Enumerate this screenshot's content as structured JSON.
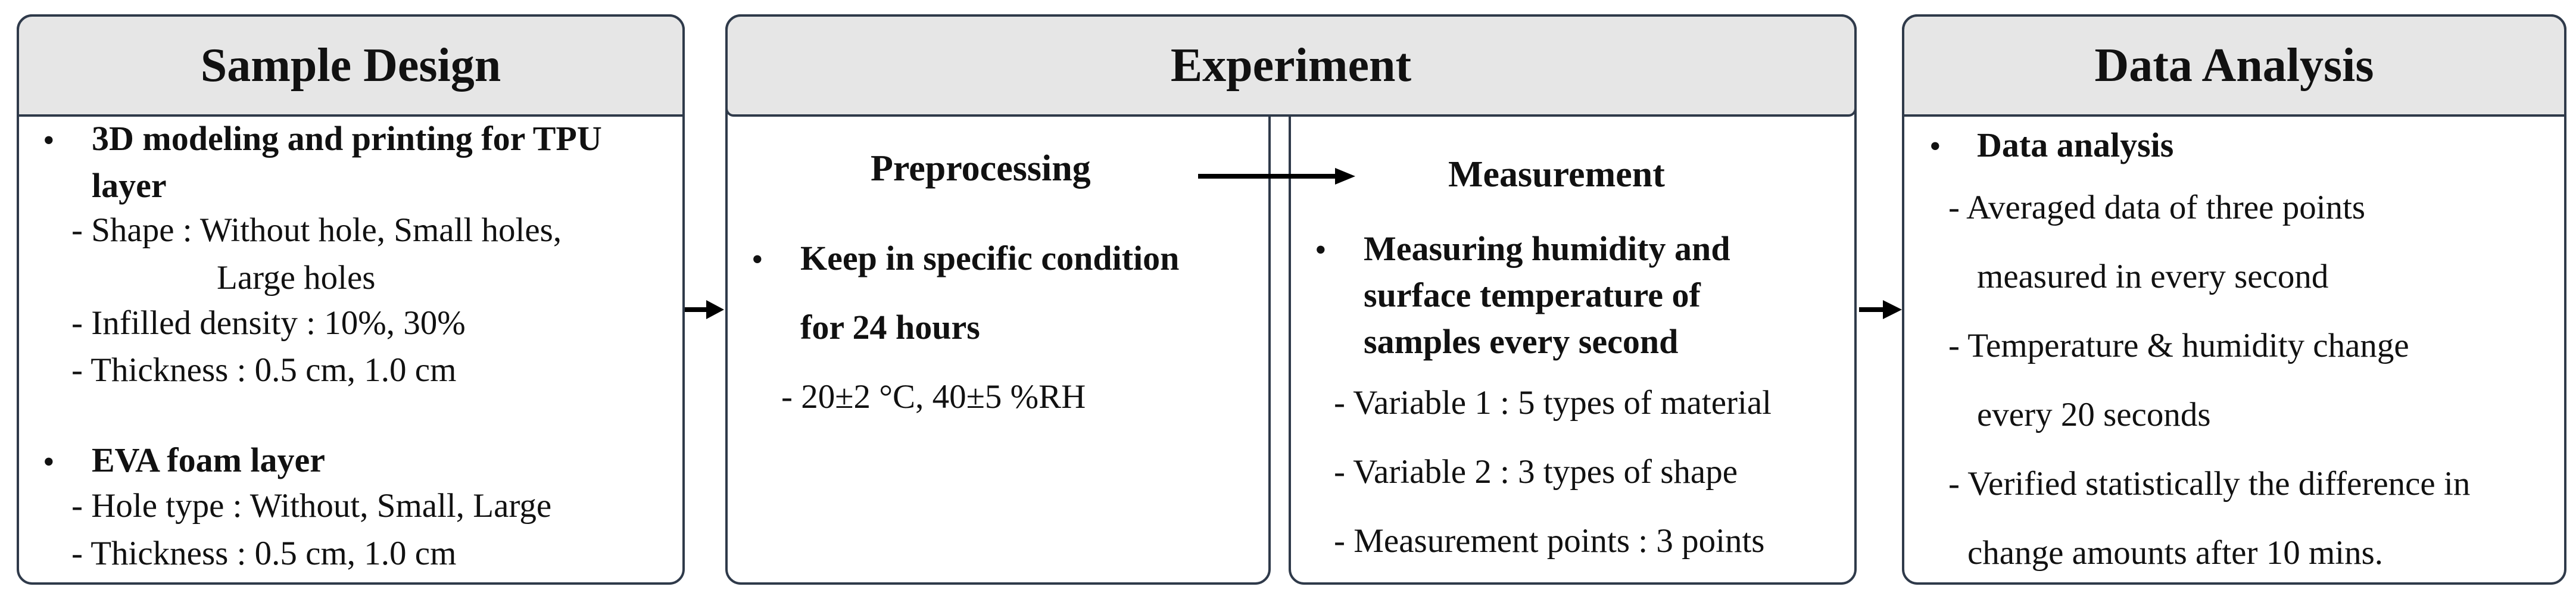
{
  "sample_design": {
    "title": "Sample Design",
    "bullet_symbol": "•",
    "tpu_heading_line1": "3D modeling and printing for TPU",
    "tpu_heading_line2": "layer",
    "shape_line1": "- Shape : Without hole, Small holes,",
    "shape_line2": "Large holes",
    "infill": "- Infilled density : 10%, 30%",
    "thickness_tpu": "- Thickness : 0.5 cm, 1.0 cm",
    "eva_heading": "EVA foam layer",
    "hole_type": "- Hole type : Without, Small, Large",
    "thickness_eva": "- Thickness : 0.5 cm, 1.0 cm"
  },
  "experiment": {
    "title": "Experiment",
    "preprocessing": {
      "title": "Preprocessing",
      "bullet_line1": "Keep in specific condition",
      "bullet_line2": "for 24 hours",
      "condition": "- 20±2 °C, 40±5 %RH"
    },
    "measurement": {
      "title": "Measurement",
      "bullet_line1": "Measuring humidity and",
      "bullet_line2": "surface temperature of",
      "bullet_line3": "samples every second",
      "var1": "- Variable 1 : 5 types of material",
      "var2": "- Variable 2 : 3 types of shape",
      "points": "- Measurement points : 3 points"
    }
  },
  "data_analysis": {
    "title": "Data Analysis",
    "heading": "Data analysis",
    "avg_line1": "- Averaged data of three points",
    "avg_line2": "measured in every second",
    "temp_line1": "- Temperature & humidity change",
    "temp_line2": "every 20 seconds",
    "verify_line1": "- Verified statistically the difference in",
    "verify_line2": "change amounts after 10 mins."
  },
  "colors": {
    "border": "#2f3a4a",
    "header_fill": "#e6e6e6",
    "arrow": "#000000"
  }
}
